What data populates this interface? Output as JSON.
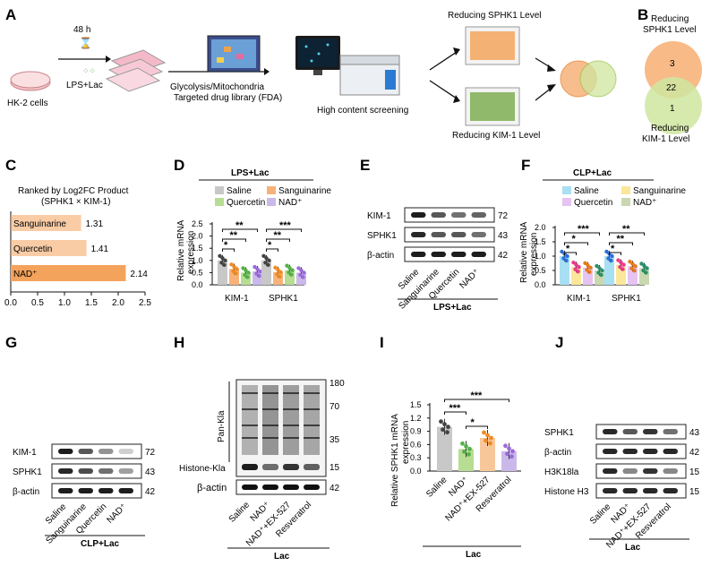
{
  "panels": [
    "A",
    "B",
    "C",
    "D",
    "E",
    "F",
    "G",
    "H",
    "I",
    "J"
  ],
  "panelA": {
    "cells": "HK-2 cells",
    "time": "48 h",
    "treatment": "LPS+Lac",
    "library_line1": "Glycolysis/Mitochondria",
    "library_line2": "Targeted drug library (FDA)",
    "screening": "High content screening",
    "top_label": "Reducing SPHK1 Level",
    "bottom_label": "Reducing KIM-1 Level"
  },
  "panelB": {
    "top_label_1": "Reducing",
    "top_label_2": "SPHK1 Level",
    "bottom_label_1": "Reducing",
    "bottom_label_2": "KIM-1  Level",
    "only_sphk1": "3",
    "overlap": "22",
    "only_kim1": "1",
    "color_sphk1": "#f7b27a",
    "color_kim1": "#cfe6a0"
  },
  "panelC": {
    "title1": "Ranked by Log2FC Product",
    "title2": "(SPHK1 × KIM-1)",
    "color_bar": "#f4a35c",
    "chart_data": {
      "type": "bar",
      "orientation": "horizontal",
      "categories": [
        "Sanguinarine",
        "Quercetin",
        "NAD⁺"
      ],
      "values": [
        1.31,
        1.41,
        2.14
      ],
      "value_labels": [
        "1.31",
        "1.41",
        "2.14"
      ],
      "xlim": [
        0,
        2.5
      ],
      "xticks": [
        "0.0",
        "0.5",
        "1.0",
        "1.5",
        "2.0",
        "2.5"
      ]
    }
  },
  "panelD": {
    "header": "LPS+Lac",
    "ylabel1": "Relative mRNA",
    "ylabel2": "expression",
    "yticks": [
      "0.0",
      "0.5",
      "1.0",
      "1.5",
      "2.0",
      "2.5"
    ],
    "groups": [
      "KIM-1",
      "SPHK1"
    ],
    "legend": [
      "Saline",
      "Quercetin",
      "Sanguinarine",
      "NAD⁺"
    ],
    "colors": [
      "#c8c8c8",
      "#f7b27a",
      "#b7dd93",
      "#cbb8ea"
    ],
    "dot_colors": [
      "#444444",
      "#f08a24",
      "#55b048",
      "#9a6bd6"
    ],
    "chart_data": {
      "type": "bar",
      "ylim": [
        0,
        2.5
      ],
      "series": [
        {
          "name": "Saline",
          "values": [
            1.0,
            1.0
          ]
        },
        {
          "name": "Sanguinarine",
          "values": [
            0.65,
            0.52
          ]
        },
        {
          "name": "Quercetin",
          "values": [
            0.5,
            0.6
          ]
        },
        {
          "name": "NAD⁺",
          "values": [
            0.55,
            0.5
          ]
        }
      ]
    },
    "sig": [
      "*",
      "**",
      "**",
      "*",
      "**",
      "***"
    ]
  },
  "panelE": {
    "bands": [
      "KIM-1",
      "SPHK1",
      "β-actin"
    ],
    "kda": [
      "72",
      "43",
      "42"
    ],
    "lanes": [
      "Saline",
      "Sanguinarine",
      "Quercetin",
      "NAD⁺"
    ],
    "footer": "LPS+Lac"
  },
  "panelF": {
    "header": "CLP+Lac",
    "ylabel1": "Relative mRNA",
    "ylabel2": "expression",
    "yticks": [
      "0.0",
      "0.5",
      "1.0",
      "1.5",
      "2.0"
    ],
    "groups": [
      "KIM-1",
      "SPHK1"
    ],
    "legend": [
      "Saline",
      "Quercetin",
      "Sanguinarine",
      "NAD⁺"
    ],
    "colors": [
      "#a9dff2",
      "#fbe79a",
      "#e6c3f2",
      "#c9d8b0"
    ],
    "dot_colors": [
      "#2a6fd6",
      "#e83a8c",
      "#e67a1c",
      "#2a8f6a"
    ],
    "chart_data": {
      "type": "bar",
      "ylim": [
        0,
        2.0
      ],
      "series": [
        {
          "name": "Saline",
          "values": [
            1.0,
            1.0
          ]
        },
        {
          "name": "Sanguinarine",
          "values": [
            0.62,
            0.7
          ]
        },
        {
          "name": "Quercetin",
          "values": [
            0.6,
            0.65
          ]
        },
        {
          "name": "NAD⁺",
          "values": [
            0.5,
            0.58
          ]
        }
      ]
    },
    "sig": [
      "*",
      "*",
      "***",
      "*",
      "**",
      "**"
    ]
  },
  "panelG": {
    "bands": [
      "KIM-1",
      "SPHK1",
      "β-actin"
    ],
    "kda": [
      "72",
      "43",
      "42"
    ],
    "lanes": [
      "Saline",
      "Sanguinarine",
      "Quercetin",
      "NAD⁺"
    ],
    "footer": "CLP+Lac"
  },
  "panelH": {
    "pan_label": "Pan-Kla",
    "histone_label": "Histone-Kla",
    "actin_label": "β-actin",
    "kda": [
      "180",
      "70",
      "35",
      "15",
      "42"
    ],
    "lanes": [
      "Saline",
      "NAD⁺",
      "NAD⁺+EX-527",
      "Resveratrol"
    ],
    "footer": "Lac"
  },
  "panelI": {
    "ylabel1": "Relative SPHK1 mRNA",
    "ylabel2": "expression",
    "yticks": [
      "0.0",
      "0.3",
      "0.6",
      "0.9",
      "1.2",
      "1.5"
    ],
    "categories": [
      "Saline",
      "NAD⁺",
      "NAD⁺+EX-527",
      "Resveratrol"
    ],
    "colors": [
      "#c8c8c8",
      "#b7dd93",
      "#f7c79a",
      "#cbb8ea"
    ],
    "dot_colors": [
      "#444444",
      "#55b048",
      "#f08a24",
      "#9a6bd6"
    ],
    "chart_data": {
      "type": "bar",
      "ylim": [
        0,
        1.5
      ],
      "values": [
        1.0,
        0.5,
        0.75,
        0.45
      ]
    },
    "sig": [
      "***",
      "*",
      "***"
    ],
    "footer": "Lac"
  },
  "panelJ": {
    "bands": [
      "SPHK1",
      "β-actin",
      "H3K18la",
      "Histone H3"
    ],
    "kda": [
      "43",
      "42",
      "15",
      "15"
    ],
    "lanes": [
      "Saline",
      "NAD⁺",
      "NAD⁺+EX-527",
      "Resveratrol"
    ],
    "footer": "Lac"
  }
}
